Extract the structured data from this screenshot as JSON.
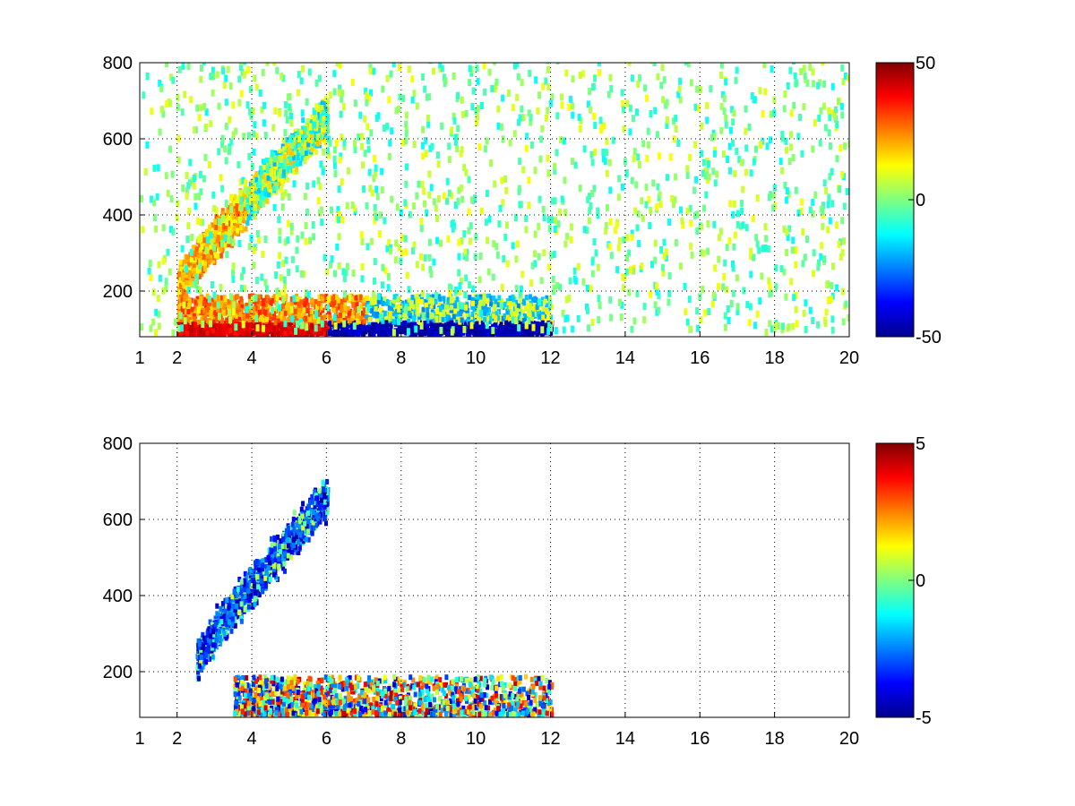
{
  "chart_data": [
    {
      "type": "heatmap",
      "panel": "top",
      "title": "",
      "xlabel": "",
      "ylabel": "",
      "xlim": [
        1,
        20
      ],
      "ylim": [
        80,
        800
      ],
      "x_ticks": [
        "1",
        "2",
        "4",
        "6",
        "8",
        "10",
        "12",
        "14",
        "16",
        "18",
        "20"
      ],
      "y_ticks": [
        "200",
        "400",
        "600",
        "800"
      ],
      "grid": true,
      "colormap": "jet",
      "colorbar": {
        "range": [
          -50,
          50
        ],
        "ticks": [
          "50",
          "0",
          "-50"
        ]
      },
      "features": [
        {
          "name": "upper band",
          "x_range": [
            2,
            6
          ],
          "y_range": [
            200,
            650
          ],
          "mixed_values": [
            -25,
            30
          ]
        },
        {
          "name": "lower band",
          "x_range": [
            2,
            12
          ],
          "y_range": [
            80,
            180
          ],
          "mixed_values": [
            -50,
            40
          ]
        },
        {
          "name": "scattered noise",
          "x_range": [
            1,
            20
          ],
          "y_range": [
            80,
            800
          ],
          "approx_value": 0
        }
      ]
    },
    {
      "type": "heatmap",
      "panel": "bottom",
      "title": "",
      "xlabel": "",
      "ylabel": "",
      "xlim": [
        1,
        20
      ],
      "ylim": [
        80,
        800
      ],
      "x_ticks": [
        "1",
        "2",
        "4",
        "6",
        "8",
        "10",
        "12",
        "14",
        "16",
        "18",
        "20"
      ],
      "y_ticks": [
        "200",
        "400",
        "600",
        "800"
      ],
      "grid": true,
      "colormap": "jet",
      "colorbar": {
        "range": [
          -5,
          5
        ],
        "ticks": [
          "5",
          "0",
          "-5"
        ]
      },
      "features": [
        {
          "name": "upper band",
          "x_range": [
            2.5,
            6
          ],
          "y_range": [
            220,
            650
          ],
          "mixed_values": [
            -3,
            1
          ]
        },
        {
          "name": "lower band",
          "x_range": [
            3.5,
            12
          ],
          "y_range": [
            80,
            180
          ],
          "mixed_values": [
            -4,
            4
          ]
        }
      ]
    }
  ],
  "colors": {
    "jet_stops": [
      "#00008f",
      "#0000ff",
      "#00ffff",
      "#7fff7f",
      "#ffff00",
      "#ff0000",
      "#800000"
    ],
    "axis": "#000000",
    "grid": "#000000",
    "background": "#ffffff"
  }
}
